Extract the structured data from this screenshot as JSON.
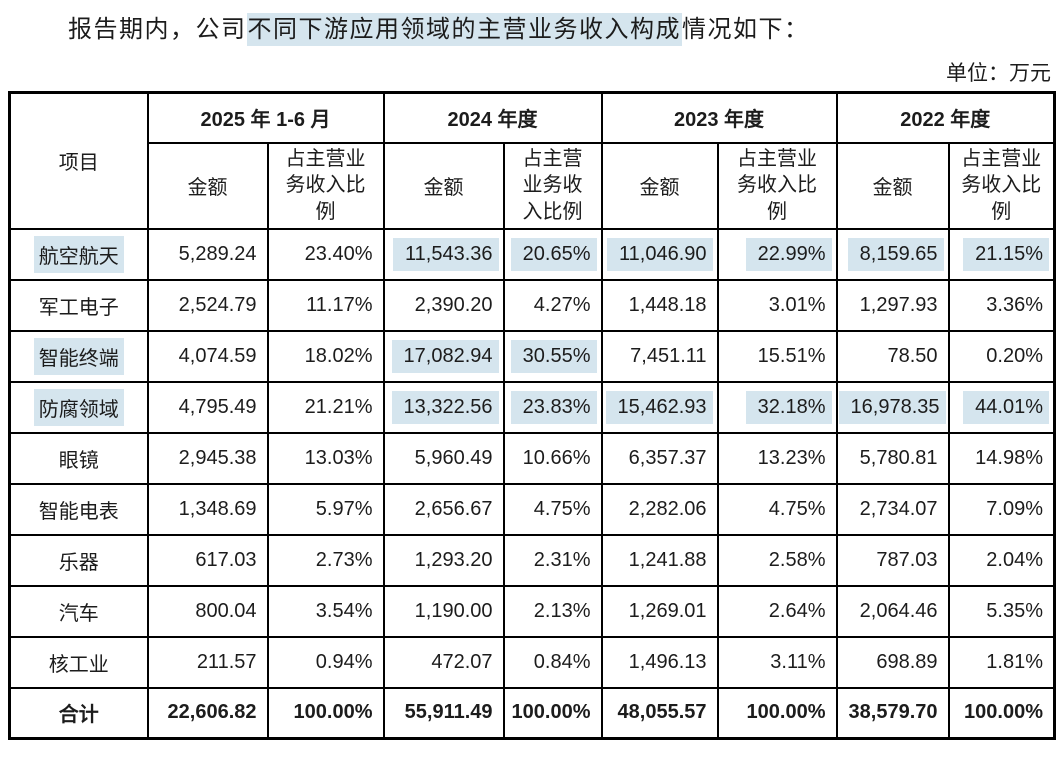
{
  "page": {
    "title_prefix": "报告期内，公司",
    "title_highlight": "不同下游应用领域的主营业务收入构成",
    "title_suffix": "情况如下：",
    "unit_label": "单位：万元",
    "highlight_color": "#d5e5ee"
  },
  "table": {
    "item_header": "项目",
    "groups": [
      {
        "label": "2025 年 1-6 月",
        "amount_header": "金额",
        "ratio_header": "占主营业务收入比例"
      },
      {
        "label": "2024 年度",
        "amount_header": "金额",
        "ratio_header": "占主营业务收入比例"
      },
      {
        "label": "2023 年度",
        "amount_header": "金额",
        "ratio_header": "占主营业务收入比例"
      },
      {
        "label": "2022 年度",
        "amount_header": "金额",
        "ratio_header": "占主营业务收入比例"
      }
    ],
    "rows": [
      {
        "label": "航空航天",
        "label_hl": true,
        "cells": [
          {
            "v": "5,289.24"
          },
          {
            "v": "23.40%"
          },
          {
            "v": "11,543.36",
            "hl": true
          },
          {
            "v": "20.65%",
            "hl": true
          },
          {
            "v": "11,046.90",
            "hl": true
          },
          {
            "v": "22.99%",
            "hl": true
          },
          {
            "v": "8,159.65",
            "hl": true
          },
          {
            "v": "21.15%",
            "hl": true
          }
        ]
      },
      {
        "label": "军工电子",
        "cells": [
          {
            "v": "2,524.79"
          },
          {
            "v": "11.17%"
          },
          {
            "v": "2,390.20"
          },
          {
            "v": "4.27%"
          },
          {
            "v": "1,448.18"
          },
          {
            "v": "3.01%"
          },
          {
            "v": "1,297.93"
          },
          {
            "v": "3.36%"
          }
        ]
      },
      {
        "label": "智能终端",
        "label_hl": true,
        "cells": [
          {
            "v": "4,074.59"
          },
          {
            "v": "18.02%"
          },
          {
            "v": "17,082.94",
            "hl": true
          },
          {
            "v": "30.55%",
            "hl": true
          },
          {
            "v": "7,451.11"
          },
          {
            "v": "15.51%"
          },
          {
            "v": "78.50"
          },
          {
            "v": "0.20%"
          }
        ]
      },
      {
        "label": "防腐领域",
        "label_hl": true,
        "cells": [
          {
            "v": "4,795.49"
          },
          {
            "v": "21.21%"
          },
          {
            "v": "13,322.56",
            "hl": true
          },
          {
            "v": "23.83%",
            "hl": true
          },
          {
            "v": "15,462.93",
            "hl": true
          },
          {
            "v": "32.18%",
            "hl": true
          },
          {
            "v": "16,978.35",
            "hl": true
          },
          {
            "v": "44.01%",
            "hl": true
          }
        ]
      },
      {
        "label": "眼镜",
        "cells": [
          {
            "v": "2,945.38"
          },
          {
            "v": "13.03%"
          },
          {
            "v": "5,960.49"
          },
          {
            "v": "10.66%"
          },
          {
            "v": "6,357.37"
          },
          {
            "v": "13.23%"
          },
          {
            "v": "5,780.81"
          },
          {
            "v": "14.98%"
          }
        ]
      },
      {
        "label": "智能电表",
        "cells": [
          {
            "v": "1,348.69"
          },
          {
            "v": "5.97%"
          },
          {
            "v": "2,656.67"
          },
          {
            "v": "4.75%"
          },
          {
            "v": "2,282.06"
          },
          {
            "v": "4.75%"
          },
          {
            "v": "2,734.07"
          },
          {
            "v": "7.09%"
          }
        ]
      },
      {
        "label": "乐器",
        "cells": [
          {
            "v": "617.03"
          },
          {
            "v": "2.73%"
          },
          {
            "v": "1,293.20"
          },
          {
            "v": "2.31%"
          },
          {
            "v": "1,241.88"
          },
          {
            "v": "2.58%"
          },
          {
            "v": "787.03"
          },
          {
            "v": "2.04%"
          }
        ]
      },
      {
        "label": "汽车",
        "cells": [
          {
            "v": "800.04"
          },
          {
            "v": "3.54%"
          },
          {
            "v": "1,190.00"
          },
          {
            "v": "2.13%"
          },
          {
            "v": "1,269.01"
          },
          {
            "v": "2.64%"
          },
          {
            "v": "2,064.46"
          },
          {
            "v": "5.35%"
          }
        ]
      },
      {
        "label": "核工业",
        "cells": [
          {
            "v": "211.57"
          },
          {
            "v": "0.94%"
          },
          {
            "v": "472.07"
          },
          {
            "v": "0.84%"
          },
          {
            "v": "1,496.13"
          },
          {
            "v": "3.11%"
          },
          {
            "v": "698.89"
          },
          {
            "v": "1.81%"
          }
        ]
      },
      {
        "label": "合计",
        "total": true,
        "cells": [
          {
            "v": "22,606.82"
          },
          {
            "v": "100.00%"
          },
          {
            "v": "55,911.49"
          },
          {
            "v": "100.00%"
          },
          {
            "v": "48,055.57"
          },
          {
            "v": "100.00%"
          },
          {
            "v": "38,579.70"
          },
          {
            "v": "100.00%"
          }
        ]
      }
    ]
  }
}
